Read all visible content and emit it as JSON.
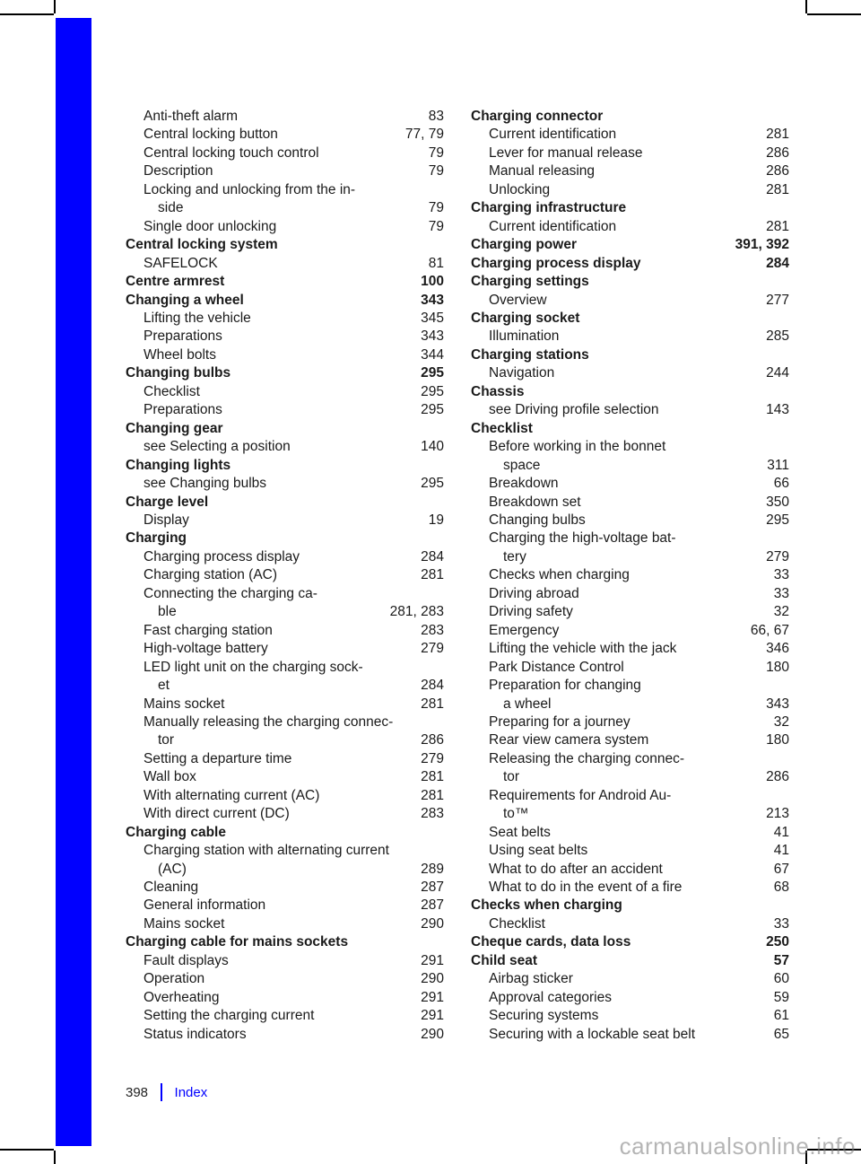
{
  "footer": {
    "page_number": "398",
    "section": "Index"
  },
  "watermark": "carmanualsonline.info",
  "left_column": [
    {
      "label": "Anti-theft alarm",
      "pages": "83",
      "indent": 1
    },
    {
      "label": "Central locking button",
      "pages": "77, 79",
      "indent": 1
    },
    {
      "label": "Central locking touch control",
      "pages": "79",
      "indent": 1
    },
    {
      "label": "Description",
      "pages": "79",
      "indent": 1
    },
    {
      "label": "Locking and unlocking from the in-",
      "pages": "",
      "indent": 1
    },
    {
      "label": "side",
      "pages": "79",
      "indent": 2
    },
    {
      "label": "Single door unlocking",
      "pages": "79",
      "indent": 1
    },
    {
      "label": "Central locking system",
      "pages": "",
      "bold": true
    },
    {
      "label": "SAFELOCK",
      "pages": "81",
      "indent": 1
    },
    {
      "label": "Centre armrest",
      "pages": "100",
      "bold": true
    },
    {
      "label": "Changing a wheel",
      "pages": "343",
      "bold": true
    },
    {
      "label": "Lifting the vehicle",
      "pages": "345",
      "indent": 1
    },
    {
      "label": "Preparations",
      "pages": "343",
      "indent": 1
    },
    {
      "label": "Wheel bolts",
      "pages": "344",
      "indent": 1
    },
    {
      "label": "Changing bulbs",
      "pages": "295",
      "bold": true
    },
    {
      "label": "Checklist",
      "pages": "295",
      "indent": 1
    },
    {
      "label": "Preparations",
      "pages": "295",
      "indent": 1
    },
    {
      "label": "Changing gear",
      "pages": "",
      "bold": true
    },
    {
      "label": "see Selecting a position",
      "pages": "140",
      "indent": 1
    },
    {
      "label": "Changing lights",
      "pages": "",
      "bold": true
    },
    {
      "label": "see Changing bulbs",
      "pages": "295",
      "indent": 1
    },
    {
      "label": "Charge level",
      "pages": "",
      "bold": true
    },
    {
      "label": "Display",
      "pages": "19",
      "indent": 1
    },
    {
      "label": "Charging",
      "pages": "",
      "bold": true
    },
    {
      "label": "Charging process display",
      "pages": "284",
      "indent": 1
    },
    {
      "label": "Charging station (AC)",
      "pages": "281",
      "indent": 1
    },
    {
      "label": "Connecting the charging ca-",
      "pages": "",
      "indent": 1
    },
    {
      "label": "ble",
      "pages": "281, 283",
      "indent": 2
    },
    {
      "label": "Fast charging station",
      "pages": "283",
      "indent": 1
    },
    {
      "label": "High-voltage battery",
      "pages": "279",
      "indent": 1
    },
    {
      "label": "LED light unit on the charging sock-",
      "pages": "",
      "indent": 1
    },
    {
      "label": "et",
      "pages": "284",
      "indent": 2
    },
    {
      "label": "Mains socket",
      "pages": "281",
      "indent": 1
    },
    {
      "label": "Manually releasing the charging connec-",
      "pages": "",
      "indent": 1
    },
    {
      "label": "tor",
      "pages": "286",
      "indent": 2
    },
    {
      "label": "Setting a departure time",
      "pages": "279",
      "indent": 1
    },
    {
      "label": "Wall box",
      "pages": "281",
      "indent": 1
    },
    {
      "label": "With alternating current (AC)",
      "pages": "281",
      "indent": 1
    },
    {
      "label": "With direct current (DC)",
      "pages": "283",
      "indent": 1
    },
    {
      "label": "Charging cable",
      "pages": "",
      "bold": true
    },
    {
      "label": "Charging station with alternating current",
      "pages": "",
      "indent": 1
    },
    {
      "label": "(AC)",
      "pages": "289",
      "indent": 2
    },
    {
      "label": "Cleaning",
      "pages": "287",
      "indent": 1
    },
    {
      "label": "General information",
      "pages": "287",
      "indent": 1
    },
    {
      "label": "Mains socket",
      "pages": "290",
      "indent": 1
    },
    {
      "label": "Charging cable for mains sockets",
      "pages": "",
      "bold": true
    },
    {
      "label": "Fault displays",
      "pages": "291",
      "indent": 1
    },
    {
      "label": "Operation",
      "pages": "290",
      "indent": 1
    },
    {
      "label": "Overheating",
      "pages": "291",
      "indent": 1
    },
    {
      "label": "Setting the charging current",
      "pages": "291",
      "indent": 1
    },
    {
      "label": "Status indicators",
      "pages": "290",
      "indent": 1
    }
  ],
  "right_column": [
    {
      "label": "Charging connector",
      "pages": "",
      "bold": true
    },
    {
      "label": "Current identification",
      "pages": "281",
      "indent": 1
    },
    {
      "label": "Lever for manual release",
      "pages": "286",
      "indent": 1
    },
    {
      "label": "Manual releasing",
      "pages": "286",
      "indent": 1
    },
    {
      "label": "Unlocking",
      "pages": "281",
      "indent": 1
    },
    {
      "label": "Charging infrastructure",
      "pages": "",
      "bold": true
    },
    {
      "label": "Current identification",
      "pages": "281",
      "indent": 1
    },
    {
      "label": "Charging power",
      "pages": "391, 392",
      "bold": true
    },
    {
      "label": "Charging process display",
      "pages": "284",
      "bold": true
    },
    {
      "label": "Charging settings",
      "pages": "",
      "bold": true
    },
    {
      "label": "Overview",
      "pages": "277",
      "indent": 1
    },
    {
      "label": "Charging socket",
      "pages": "",
      "bold": true
    },
    {
      "label": "Illumination",
      "pages": "285",
      "indent": 1
    },
    {
      "label": "Charging stations",
      "pages": "",
      "bold": true
    },
    {
      "label": "Navigation",
      "pages": "244",
      "indent": 1
    },
    {
      "label": "Chassis",
      "pages": "",
      "bold": true
    },
    {
      "label": "see Driving profile selection",
      "pages": "143",
      "indent": 1
    },
    {
      "label": "Checklist",
      "pages": "",
      "bold": true
    },
    {
      "label": "Before working in the bonnet",
      "pages": "",
      "indent": 1
    },
    {
      "label": "space",
      "pages": "311",
      "indent": 2
    },
    {
      "label": "Breakdown",
      "pages": "66",
      "indent": 1
    },
    {
      "label": "Breakdown set",
      "pages": "350",
      "indent": 1
    },
    {
      "label": "Changing bulbs",
      "pages": "295",
      "indent": 1
    },
    {
      "label": "Charging the high-voltage bat-",
      "pages": "",
      "indent": 1
    },
    {
      "label": "tery",
      "pages": "279",
      "indent": 2
    },
    {
      "label": "Checks when charging",
      "pages": "33",
      "indent": 1
    },
    {
      "label": "Driving abroad",
      "pages": "33",
      "indent": 1
    },
    {
      "label": "Driving safety",
      "pages": "32",
      "indent": 1
    },
    {
      "label": "Emergency",
      "pages": "66, 67",
      "indent": 1
    },
    {
      "label": "Lifting the vehicle with the jack",
      "pages": "346",
      "indent": 1
    },
    {
      "label": "Park Distance Control",
      "pages": "180",
      "indent": 1
    },
    {
      "label": "Preparation for changing",
      "pages": "",
      "indent": 1
    },
    {
      "label": "a wheel",
      "pages": "343",
      "indent": 2
    },
    {
      "label": "Preparing for a journey",
      "pages": "32",
      "indent": 1
    },
    {
      "label": "Rear view camera system",
      "pages": "180",
      "indent": 1
    },
    {
      "label": "Releasing the charging connec-",
      "pages": "",
      "indent": 1
    },
    {
      "label": "tor",
      "pages": "286",
      "indent": 2
    },
    {
      "label": "Requirements for Android Au-",
      "pages": "",
      "indent": 1
    },
    {
      "label": "to™",
      "pages": "213",
      "indent": 2
    },
    {
      "label": "Seat belts",
      "pages": "41",
      "indent": 1
    },
    {
      "label": "Using seat belts",
      "pages": "41",
      "indent": 1
    },
    {
      "label": "What to do after an accident",
      "pages": "67",
      "indent": 1
    },
    {
      "label": "What to do in the event of a fire",
      "pages": "68",
      "indent": 1
    },
    {
      "label": "Checks when charging",
      "pages": "",
      "bold": true
    },
    {
      "label": "Checklist",
      "pages": "33",
      "indent": 1
    },
    {
      "label": "Cheque cards, data loss",
      "pages": "250",
      "bold": true
    },
    {
      "label": "Child seat",
      "pages": "57",
      "bold": true
    },
    {
      "label": "Airbag sticker",
      "pages": "60",
      "indent": 1
    },
    {
      "label": "Approval categories",
      "pages": "59",
      "indent": 1
    },
    {
      "label": "Securing systems",
      "pages": "61",
      "indent": 1
    },
    {
      "label": "Securing with a lockable seat belt",
      "pages": "65",
      "indent": 1
    }
  ]
}
